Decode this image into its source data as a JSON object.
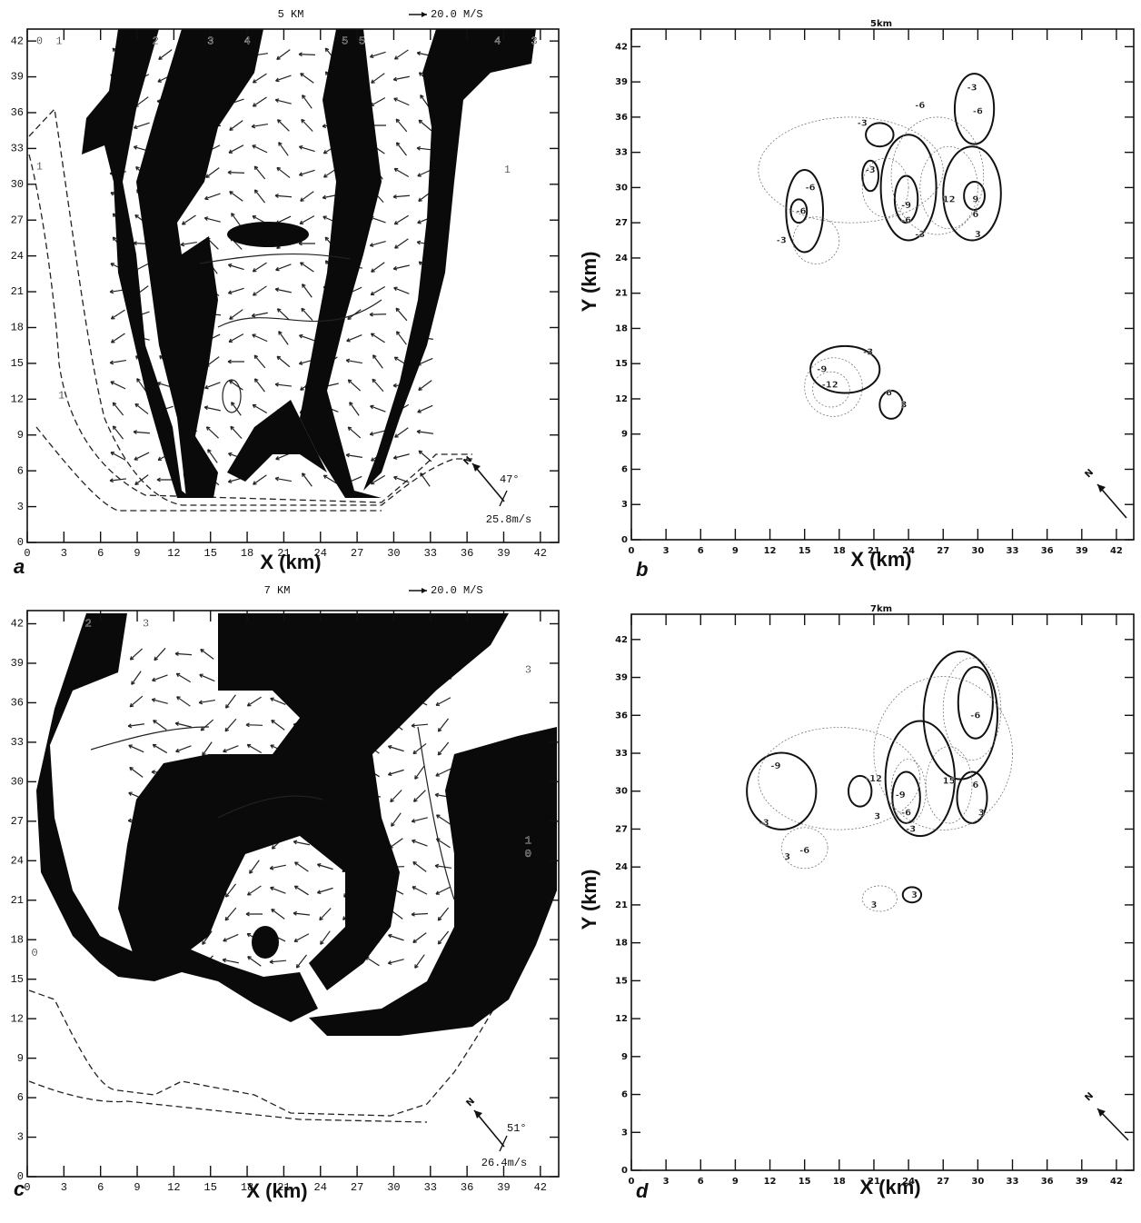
{
  "panels": [
    {
      "label": "a",
      "title": "5 KM",
      "vector_scale": "20.0 M/S",
      "north": "N",
      "storm_direction": "47°",
      "storm_speed": "25.8m/s",
      "x_label": "X (km)",
      "xlim": [
        0,
        43.5
      ],
      "ylim": [
        0,
        43
      ],
      "xticks": [
        0,
        3,
        6,
        9,
        12,
        15,
        18,
        21,
        24,
        27,
        30,
        33,
        36,
        39,
        42
      ],
      "yticks": [
        0,
        3,
        6,
        9,
        12,
        15,
        18,
        21,
        24,
        27,
        30,
        33,
        36,
        39,
        42
      ],
      "contour_labels": [
        "0",
        "1",
        "2",
        "3",
        "4",
        "5",
        "5",
        "4",
        "3",
        "1",
        "1",
        "1"
      ]
    },
    {
      "label": "b",
      "title": "5km",
      "north": "N",
      "x_label": "X (km)",
      "y_label": "Y (km)",
      "xlim": [
        0,
        43.5
      ],
      "ylim": [
        0,
        43.5
      ],
      "xticks": [
        0,
        3,
        6,
        9,
        12,
        15,
        18,
        21,
        24,
        27,
        30,
        33,
        36,
        39,
        42
      ],
      "yticks": [
        0,
        3,
        6,
        9,
        12,
        15,
        18,
        21,
        24,
        27,
        30,
        33,
        36,
        39,
        42
      ],
      "contour_labels": [
        "-3",
        "-6",
        "-3",
        "-6",
        "-6",
        "-6",
        "-3",
        "-3",
        "-9",
        "-6",
        "-3",
        "9",
        "6",
        "3",
        "-3",
        "-9",
        "-12",
        "6",
        "3",
        "12"
      ]
    },
    {
      "label": "c",
      "title": "7 KM",
      "vector_scale": "20.0 M/S",
      "north": "N",
      "storm_direction": "51°",
      "storm_speed": "26.4m/s",
      "x_label": "X (km)",
      "xlim": [
        0,
        43.5
      ],
      "ylim": [
        0,
        43
      ],
      "xticks": [
        0,
        3,
        6,
        9,
        12,
        15,
        18,
        21,
        24,
        27,
        30,
        33,
        36,
        39,
        42
      ],
      "yticks": [
        0,
        3,
        6,
        9,
        12,
        15,
        18,
        21,
        24,
        27,
        30,
        33,
        36,
        39,
        42
      ],
      "contour_labels": [
        "2",
        "3",
        "3",
        "1",
        "0",
        "0"
      ]
    },
    {
      "label": "d",
      "title": "7km",
      "north": "N",
      "x_label": "X (km)",
      "y_label": "Y (km)",
      "xlim": [
        0,
        43.5
      ],
      "ylim": [
        0,
        44
      ],
      "xticks": [
        0,
        3,
        6,
        9,
        12,
        15,
        18,
        21,
        24,
        27,
        30,
        33,
        36,
        39,
        42
      ],
      "yticks": [
        0,
        3,
        6,
        9,
        12,
        15,
        18,
        21,
        24,
        27,
        30,
        33,
        36,
        39,
        42
      ],
      "contour_labels": [
        "-6",
        "-9",
        "-6",
        "-3",
        "3",
        "3",
        "6",
        "-3",
        "3",
        "-6",
        "-9",
        "15",
        "-12",
        "3",
        "3"
      ]
    }
  ]
}
